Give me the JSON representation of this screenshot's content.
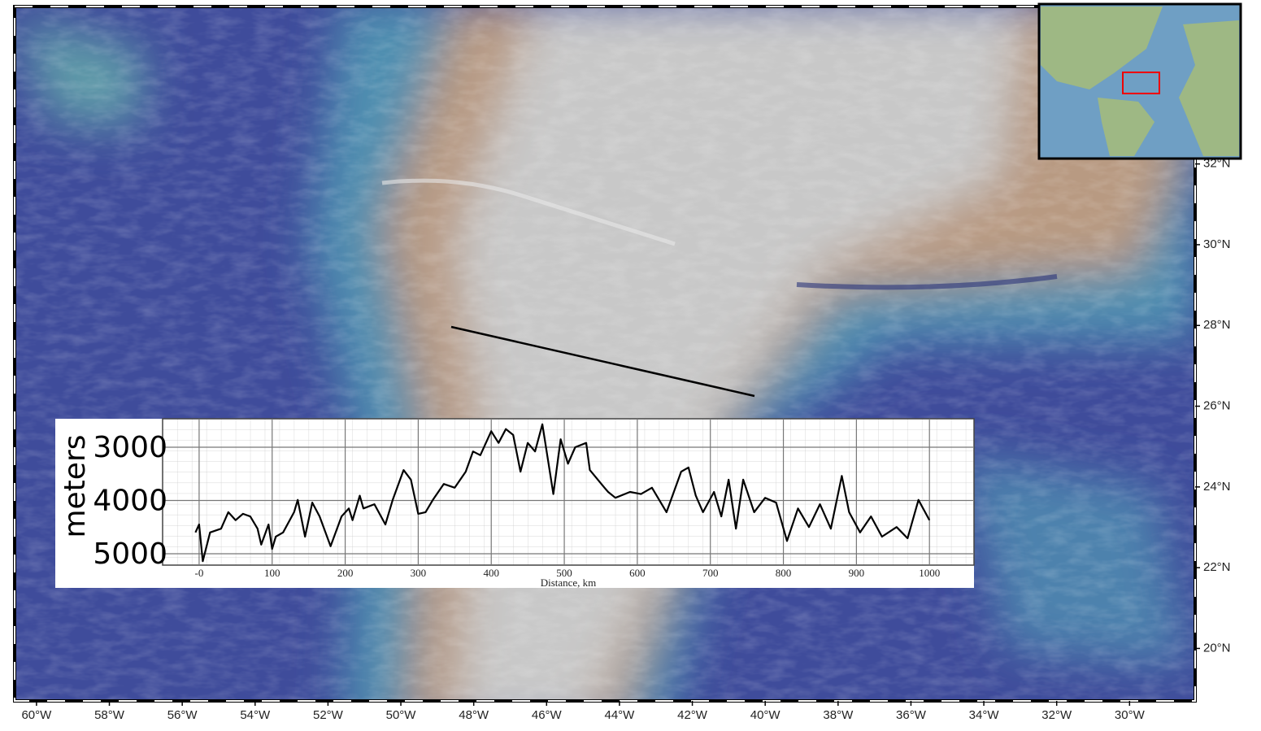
{
  "map": {
    "lonlim": [
      -60.6,
      -28.2
    ],
    "latlim": [
      18.7,
      35.9
    ],
    "lon_ticks": [
      {
        "value": -60,
        "label": "60°W"
      },
      {
        "value": -58,
        "label": "58°W"
      },
      {
        "value": -56,
        "label": "56°W"
      },
      {
        "value": -54,
        "label": "54°W"
      },
      {
        "value": -52,
        "label": "52°W"
      },
      {
        "value": -50,
        "label": "50°W"
      },
      {
        "value": -48,
        "label": "48°W"
      },
      {
        "value": -46,
        "label": "46°W"
      },
      {
        "value": -44,
        "label": "44°W"
      },
      {
        "value": -42,
        "label": "42°W"
      },
      {
        "value": -40,
        "label": "40°W"
      },
      {
        "value": -38,
        "label": "38°W"
      },
      {
        "value": -36,
        "label": "36°W"
      },
      {
        "value": -34,
        "label": "34°W"
      },
      {
        "value": -32,
        "label": "32°W"
      },
      {
        "value": -30,
        "label": "30°W"
      }
    ],
    "lat_ticks": [
      {
        "value": 20,
        "label": "20°N"
      },
      {
        "value": 22,
        "label": "22°N"
      },
      {
        "value": 24,
        "label": "24°N"
      },
      {
        "value": 26,
        "label": "26°N"
      },
      {
        "value": 28,
        "label": "28°N"
      },
      {
        "value": 30,
        "label": "30°N"
      },
      {
        "value": 32,
        "label": "32°N"
      }
    ]
  },
  "chart_data": {
    "type": "line",
    "y_label": "meters",
    "x_label": "Distance, km",
    "color": "#000000",
    "xlim": [
      -50,
      1061
    ],
    "ylim": [
      5214,
      2466
    ],
    "xticks": [
      {
        "value": 0,
        "label": "-0"
      },
      100,
      200,
      300,
      400,
      500,
      600,
      700,
      800,
      900,
      1000
    ],
    "yticks": [
      3000,
      4000,
      5000
    ],
    "grid": true,
    "x": [
      -5,
      0,
      5,
      15,
      30,
      40,
      50,
      60,
      70,
      80,
      85,
      95,
      100,
      105,
      115,
      130,
      135,
      145,
      155,
      165,
      180,
      195,
      205,
      210,
      220,
      225,
      240,
      255,
      265,
      280,
      290,
      300,
      310,
      320,
      335,
      350,
      365,
      375,
      385,
      400,
      410,
      420,
      430,
      440,
      450,
      460,
      470,
      485,
      495,
      505,
      515,
      530,
      535,
      555,
      560,
      570,
      590,
      605,
      620,
      640,
      660,
      670,
      680,
      690,
      705,
      715,
      725,
      735,
      745,
      760,
      775,
      790,
      805,
      820,
      835,
      850,
      865,
      880,
      890,
      905,
      920,
      935,
      955,
      970,
      985,
      1000
    ],
    "values": [
      4600,
      4450,
      5140,
      4600,
      4530,
      4220,
      4370,
      4250,
      4300,
      4530,
      4830,
      4450,
      4910,
      4680,
      4600,
      4220,
      3990,
      4680,
      4040,
      4300,
      4860,
      4300,
      4150,
      4370,
      3910,
      4150,
      4070,
      4450,
      3990,
      3430,
      3610,
      4250,
      4220,
      3990,
      3690,
      3760,
      3460,
      3080,
      3150,
      2700,
      2920,
      2660,
      2770,
      3460,
      2920,
      3080,
      2570,
      3880,
      2850,
      3310,
      3000,
      2920,
      3430,
      3760,
      3840,
      3950,
      3840,
      3880,
      3760,
      4220,
      3460,
      3380,
      3910,
      4220,
      3840,
      4300,
      3610,
      4530,
      3610,
      4220,
      3950,
      4040,
      4760,
      4150,
      4500,
      4070,
      4530,
      3540,
      4220,
      4600,
      4300,
      4680,
      4500,
      4710,
      3990,
      4370
    ]
  }
}
